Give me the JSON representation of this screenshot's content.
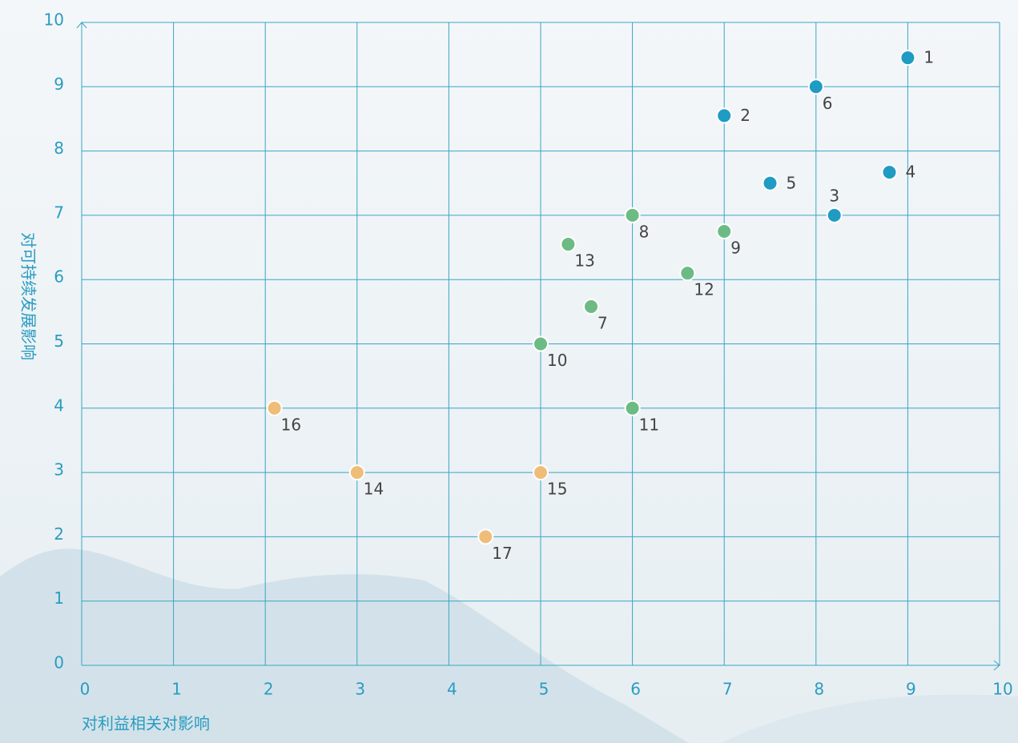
{
  "chart_data": {
    "type": "scatter",
    "xlabel": "对利益相关对影响",
    "ylabel": "对可持续发展影响",
    "x": [
      9.0,
      7.0,
      8.2,
      8.8,
      7.5,
      8.0,
      5.55,
      6.0,
      7.0,
      5.0,
      6.0,
      6.6,
      5.3,
      3.0,
      5.0,
      2.1,
      4.4
    ],
    "y": [
      9.45,
      8.55,
      7.0,
      7.67,
      7.5,
      9.0,
      5.58,
      7.0,
      6.75,
      5.0,
      4.0,
      6.1,
      6.55,
      3.0,
      3.0,
      4.0,
      2.0
    ],
    "labels": [
      "1",
      "2",
      "3",
      "4",
      "5",
      "6",
      "7",
      "8",
      "9",
      "10",
      "11",
      "12",
      "13",
      "14",
      "15",
      "16",
      "17"
    ],
    "colors": [
      "#1f9bc4",
      "#1f9bc4",
      "#1f9bc4",
      "#1f9bc4",
      "#1f9bc4",
      "#1f9bc4",
      "#6dbb84",
      "#6dbb84",
      "#6dbb84",
      "#6dbb84",
      "#6dbb84",
      "#6dbb84",
      "#6dbb84",
      "#efbd78",
      "#efbd78",
      "#efbd78",
      "#efbd78"
    ],
    "xlim": [
      0,
      10
    ],
    "ylim": [
      0,
      10
    ],
    "xticks": [
      0,
      1,
      2,
      3,
      4,
      5,
      6,
      7,
      8,
      9,
      10
    ],
    "yticks": [
      0,
      1,
      2,
      3,
      4,
      5,
      6,
      7,
      8,
      9,
      10
    ],
    "grid": true
  }
}
